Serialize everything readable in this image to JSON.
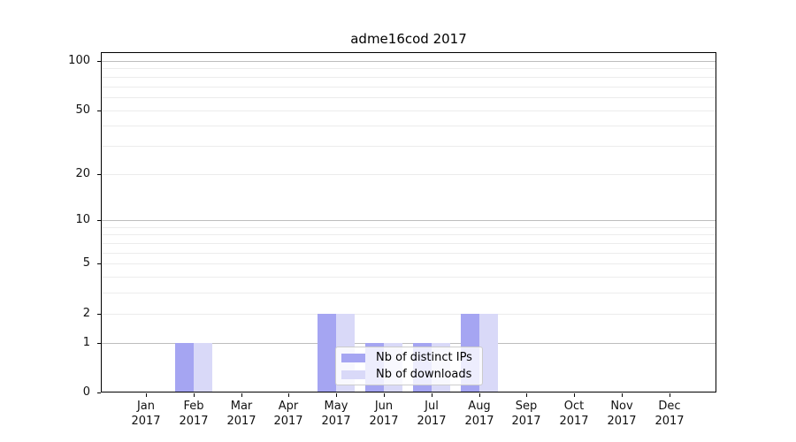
{
  "chart_data": {
    "type": "bar",
    "title": "adme16cod 2017",
    "categories": [
      "Jan",
      "Feb",
      "Mar",
      "Apr",
      "May",
      "Jun",
      "Jul",
      "Aug",
      "Sep",
      "Oct",
      "Nov",
      "Dec"
    ],
    "x_year_label": "2017",
    "series": [
      {
        "name": "Nb of distinct IPs",
        "color": "#a5a5f2",
        "values": [
          0,
          1,
          0,
          0,
          2,
          1,
          1,
          2,
          0,
          0,
          0,
          0
        ]
      },
      {
        "name": "Nb of downloads",
        "color": "#d9d9f8",
        "values": [
          0,
          1,
          0,
          0,
          2,
          1,
          1,
          2,
          0,
          0,
          0,
          0
        ]
      }
    ],
    "yscale": "log1p",
    "ylim": [
      0,
      100
    ],
    "ytick_labels": [
      "0",
      "1",
      "2",
      "5",
      "10",
      "20",
      "50",
      "100"
    ],
    "ytick_values": [
      0,
      1,
      2,
      5,
      10,
      20,
      50,
      100
    ],
    "major_gridline_values": [
      1,
      10,
      100
    ],
    "minor_gridline_values": [
      2,
      3,
      4,
      5,
      6,
      7,
      8,
      9,
      20,
      30,
      40,
      50,
      60,
      70,
      80,
      90
    ],
    "colors": {
      "major_grid": "#bdbdbd",
      "minor_grid": "#ececec",
      "axis": "#000000"
    },
    "legend": {
      "position": "lower center",
      "labels": [
        "Nb of distinct IPs",
        "Nb of downloads"
      ]
    }
  }
}
